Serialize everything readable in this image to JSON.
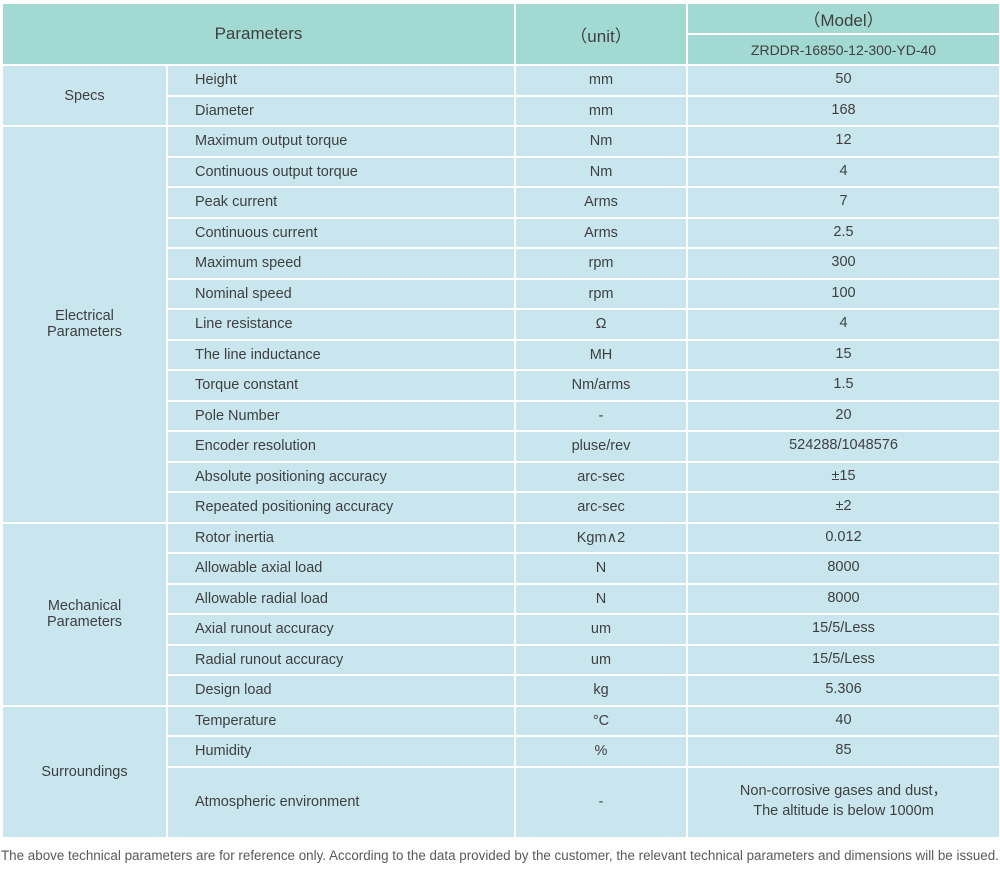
{
  "header": {
    "parameters_label": "Parameters",
    "unit_label": "（unit）",
    "model_label": "（Model）",
    "model_value": "ZRDDR-16850-12-300-YD-40"
  },
  "sections": [
    {
      "group": "Specs",
      "rows": [
        {
          "name": "Height",
          "unit": "mm",
          "value": "50"
        },
        {
          "name": "Diameter",
          "unit": "mm",
          "value": "168"
        }
      ]
    },
    {
      "group": "Electrical\nParameters",
      "rows": [
        {
          "name": "Maximum output torque",
          "unit": "Nm",
          "value": "12"
        },
        {
          "name": "Continuous output torque",
          "unit": "Nm",
          "value": "4"
        },
        {
          "name": "Peak current",
          "unit": "Arms",
          "value": "7"
        },
        {
          "name": "Continuous current",
          "unit": "Arms",
          "value": "2.5"
        },
        {
          "name": "Maximum speed",
          "unit": "rpm",
          "value": "300"
        },
        {
          "name": "Nominal speed",
          "unit": "rpm",
          "value": "100"
        },
        {
          "name": "Line resistance",
          "unit": "Ω",
          "value": "4"
        },
        {
          "name": "The line inductance",
          "unit": "MH",
          "value": "15"
        },
        {
          "name": "Torque constant",
          "unit": "Nm/arms",
          "value": "1.5"
        },
        {
          "name": "Pole Number",
          "unit": "-",
          "value": "20"
        },
        {
          "name": "Encoder resolution",
          "unit": "pluse/rev",
          "value": "524288/1048576"
        },
        {
          "name": "Absolute positioning accuracy",
          "unit": "arc-sec",
          "value": "±15"
        },
        {
          "name": "Repeated positioning accuracy",
          "unit": "arc-sec",
          "value": "±2"
        }
      ]
    },
    {
      "group": "Mechanical\nParameters",
      "rows": [
        {
          "name": "Rotor inertia",
          "unit": "Kgm∧2",
          "value": "0.012"
        },
        {
          "name": "Allowable axial load",
          "unit": "N",
          "value": "8000"
        },
        {
          "name": "Allowable radial load",
          "unit": "N",
          "value": "8000"
        },
        {
          "name": "Axial runout accuracy",
          "unit": "um",
          "value": "15/5/Less"
        },
        {
          "name": "Radial runout accuracy",
          "unit": "um",
          "value": "15/5/Less"
        },
        {
          "name": "Design load",
          "unit": "kg",
          "value": "5.306"
        }
      ]
    },
    {
      "group": "Surroundings",
      "rows": [
        {
          "name": "Temperature",
          "unit": "°C",
          "value": "40"
        },
        {
          "name": "Humidity",
          "unit": "%",
          "value": "85"
        },
        {
          "name": "Atmospheric environment",
          "unit": "-",
          "value": "Non-corrosive gases and dust，\nThe altitude is below 1000m",
          "tall": true
        }
      ]
    }
  ],
  "footer": {
    "note": "The above technical parameters are for reference only. According to the data provided by the customer, the relevant technical parameters and dimensions will be issued."
  },
  "colors": {
    "header_bg": "#a2d9d2",
    "row_bg": "#c9e6ef",
    "border": "#ffffff",
    "text": "#3f3f3f",
    "note_text": "#595959"
  }
}
